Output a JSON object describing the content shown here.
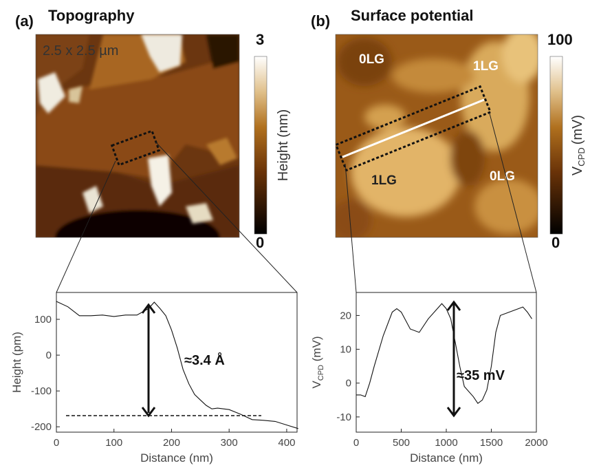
{
  "panels": [
    {
      "label": "(a)",
      "title": "Topography",
      "map_label": "2.5 x 2.5 µm",
      "colorbar": {
        "label": "Height (nm)",
        "lim": [
          0,
          3
        ]
      }
    },
    {
      "label": "(b)",
      "title": "Surface potential",
      "regions": [
        "0LG",
        "1LG",
        "1LG",
        "0LG"
      ],
      "colorbar": {
        "label": {
          "main": "V",
          "sub": "CPD",
          "unit": "(mV)"
        },
        "lim": [
          0,
          100
        ]
      }
    }
  ],
  "chart_data": [
    {
      "type": "line",
      "color": "#111",
      "x": [
        0,
        20,
        40,
        60,
        80,
        100,
        120,
        140,
        160,
        170,
        180,
        190,
        200,
        210,
        220,
        230,
        240,
        250,
        260,
        270,
        280,
        300,
        320,
        340,
        360,
        380,
        400,
        420
      ],
      "values": [
        150,
        135,
        110,
        110,
        112,
        108,
        112,
        112,
        130,
        148,
        130,
        110,
        70,
        20,
        -40,
        -80,
        -110,
        -125,
        -140,
        -150,
        -148,
        -152,
        -165,
        -180,
        -182,
        -185,
        -195,
        -205
      ],
      "xlim": [
        0,
        418
      ],
      "ylim": [
        -215,
        175
      ],
      "xticks": [
        0,
        100,
        200,
        300,
        400
      ],
      "yticks": [
        -200,
        -100,
        0,
        100
      ],
      "x_label": "Distance (nm)",
      "y_label": {
        "main": "Height (pm)"
      },
      "annotation": "≈3.4 Å"
    },
    {
      "type": "line",
      "color": "#111",
      "x": [
        0,
        50,
        100,
        150,
        200,
        300,
        400,
        450,
        500,
        600,
        700,
        800,
        900,
        950,
        1000,
        1050,
        1100,
        1150,
        1200,
        1300,
        1350,
        1400,
        1450,
        1500,
        1550,
        1600,
        1700,
        1800,
        1850,
        1900,
        1950
      ],
      "values": [
        -3.5,
        -3.5,
        -4,
        0,
        5,
        14,
        21,
        22,
        21,
        16,
        15,
        19,
        22,
        23.5,
        22,
        19,
        12,
        5,
        -1,
        -4,
        -6,
        -5,
        -2,
        5,
        15,
        20,
        21,
        22,
        22.5,
        21,
        19
      ],
      "xlim": [
        0,
        2000
      ],
      "ylim": [
        -14.5,
        26.8
      ],
      "xticks": [
        0,
        500,
        1000,
        1500,
        2000
      ],
      "yticks": [
        -10,
        0,
        10,
        20
      ],
      "x_label": "Distance (nm)",
      "y_label": {
        "main": "V",
        "sub": "CPD",
        "unit": " (mV)"
      },
      "annotation": "≈35 mV"
    }
  ]
}
